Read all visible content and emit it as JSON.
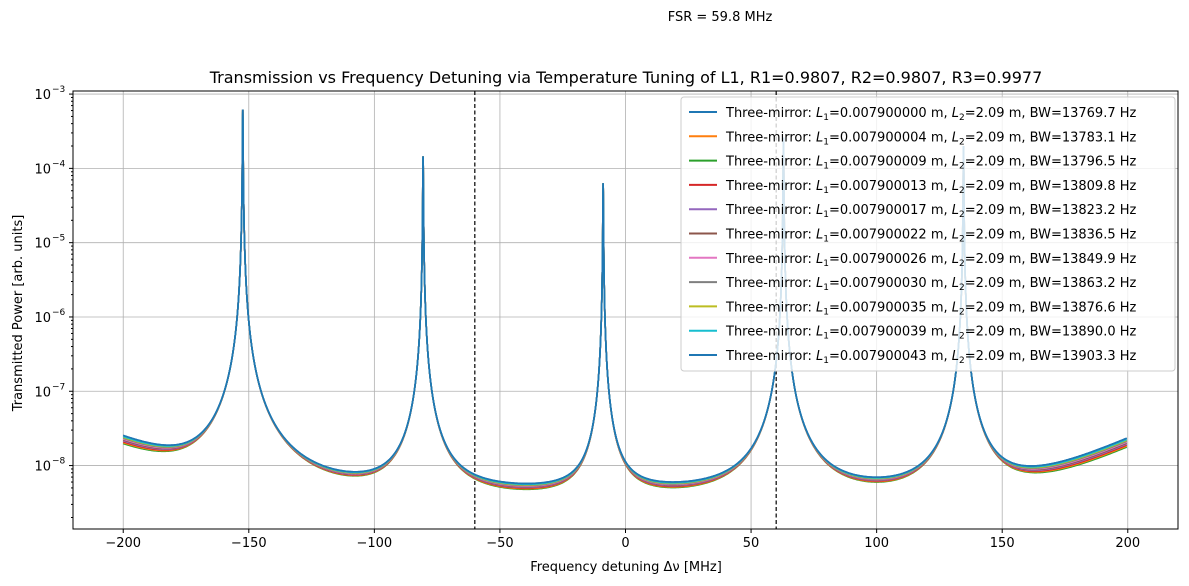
{
  "annotation": "FSR = 59.8 MHz",
  "chart_data": {
    "type": "line",
    "title": "Transmission vs Frequency Detuning via Temperature Tuning of L1, R1=0.9807, R2=0.9807, R3=0.9977",
    "xlabel": "Frequency detuning Δν [MHz]",
    "ylabel": "Transmitted Power [arb. units]",
    "xlim": [
      -220,
      220
    ],
    "ylim": [
      1.4e-09,
      0.0011
    ],
    "yscale": "log",
    "grid": true,
    "legend_position": "top-right",
    "x_ticks": [
      -200,
      -150,
      -100,
      -50,
      0,
      50,
      100,
      150,
      200
    ],
    "x_tick_labels": [
      "−200",
      "−150",
      "−100",
      "−50",
      "0",
      "50",
      "100",
      "150",
      "200"
    ],
    "y_ticks": [
      1e-08,
      1e-07,
      1e-06,
      1e-05,
      0.0001,
      0.001
    ],
    "y_tick_labels": [
      "10",
      "10",
      "10",
      "10",
      "10",
      "10"
    ],
    "y_tick_exponents": [
      "−8",
      "−7",
      "−6",
      "−5",
      "−4",
      "−3"
    ],
    "vertical_lines": [
      -60,
      60
    ],
    "x_range": [
      -200,
      200
    ],
    "peaks": [
      {
        "x": -152.4,
        "height": 0.00062
      },
      {
        "x": -80.6,
        "height": 0.000145
      },
      {
        "x": -8.9,
        "height": 6.3e-05
      },
      {
        "x": 62.9,
        "height": 0.00026
      },
      {
        "x": 134.6,
        "height": 0.0002
      }
    ],
    "series": [
      {
        "name_prefix": "Three-mirror: ",
        "L1": "=0.007900000 m, ",
        "L2": "=2.09 m, BW=13769.7 Hz",
        "color": "#1f77b4",
        "min_value": 3.85e-09
      },
      {
        "name_prefix": "Three-mirror: ",
        "L1": "=0.007900004 m, ",
        "L2": "=2.09 m, BW=13783.1 Hz",
        "color": "#ff7f0e",
        "min_value": 3e-09
      },
      {
        "name_prefix": "Three-mirror: ",
        "L1": "=0.007900009 m, ",
        "L2": "=2.09 m, BW=13796.5 Hz",
        "color": "#2ca02c",
        "min_value": 2.9e-09
      },
      {
        "name_prefix": "Three-mirror: ",
        "L1": "=0.007900013 m, ",
        "L2": "=2.09 m, BW=13809.8 Hz",
        "color": "#d62728",
        "min_value": 3.1e-09
      },
      {
        "name_prefix": "Three-mirror: ",
        "L1": "=0.007900017 m, ",
        "L2": "=2.09 m, BW=13823.2 Hz",
        "color": "#9467bd",
        "min_value": 3.2e-09
      },
      {
        "name_prefix": "Three-mirror: ",
        "L1": "=0.007900022 m, ",
        "L2": "=2.09 m, BW=13836.5 Hz",
        "color": "#8c564b",
        "min_value": 3.3e-09
      },
      {
        "name_prefix": "Three-mirror: ",
        "L1": "=0.007900026 m, ",
        "L2": "=2.09 m, BW=13849.9 Hz",
        "color": "#e377c2",
        "min_value": 3.4e-09
      },
      {
        "name_prefix": "Three-mirror: ",
        "L1": "=0.007900030 m, ",
        "L2": "=2.09 m, BW=13863.2 Hz",
        "color": "#7f7f7f",
        "min_value": 3.5e-09
      },
      {
        "name_prefix": "Three-mirror: ",
        "L1": "=0.007900035 m, ",
        "L2": "=2.09 m, BW=13876.6 Hz",
        "color": "#bcbd22",
        "min_value": 3.6e-09
      },
      {
        "name_prefix": "Three-mirror: ",
        "L1": "=0.007900039 m, ",
        "L2": "=2.09 m, BW=13890.0 Hz",
        "color": "#17becf",
        "min_value": 3.7e-09
      },
      {
        "name_prefix": "Three-mirror: ",
        "L1": "=0.007900043 m, ",
        "L2": "=2.09 m, BW=13903.3 Hz",
        "color": "#1f77b4",
        "min_value": 3.85e-09
      }
    ]
  }
}
